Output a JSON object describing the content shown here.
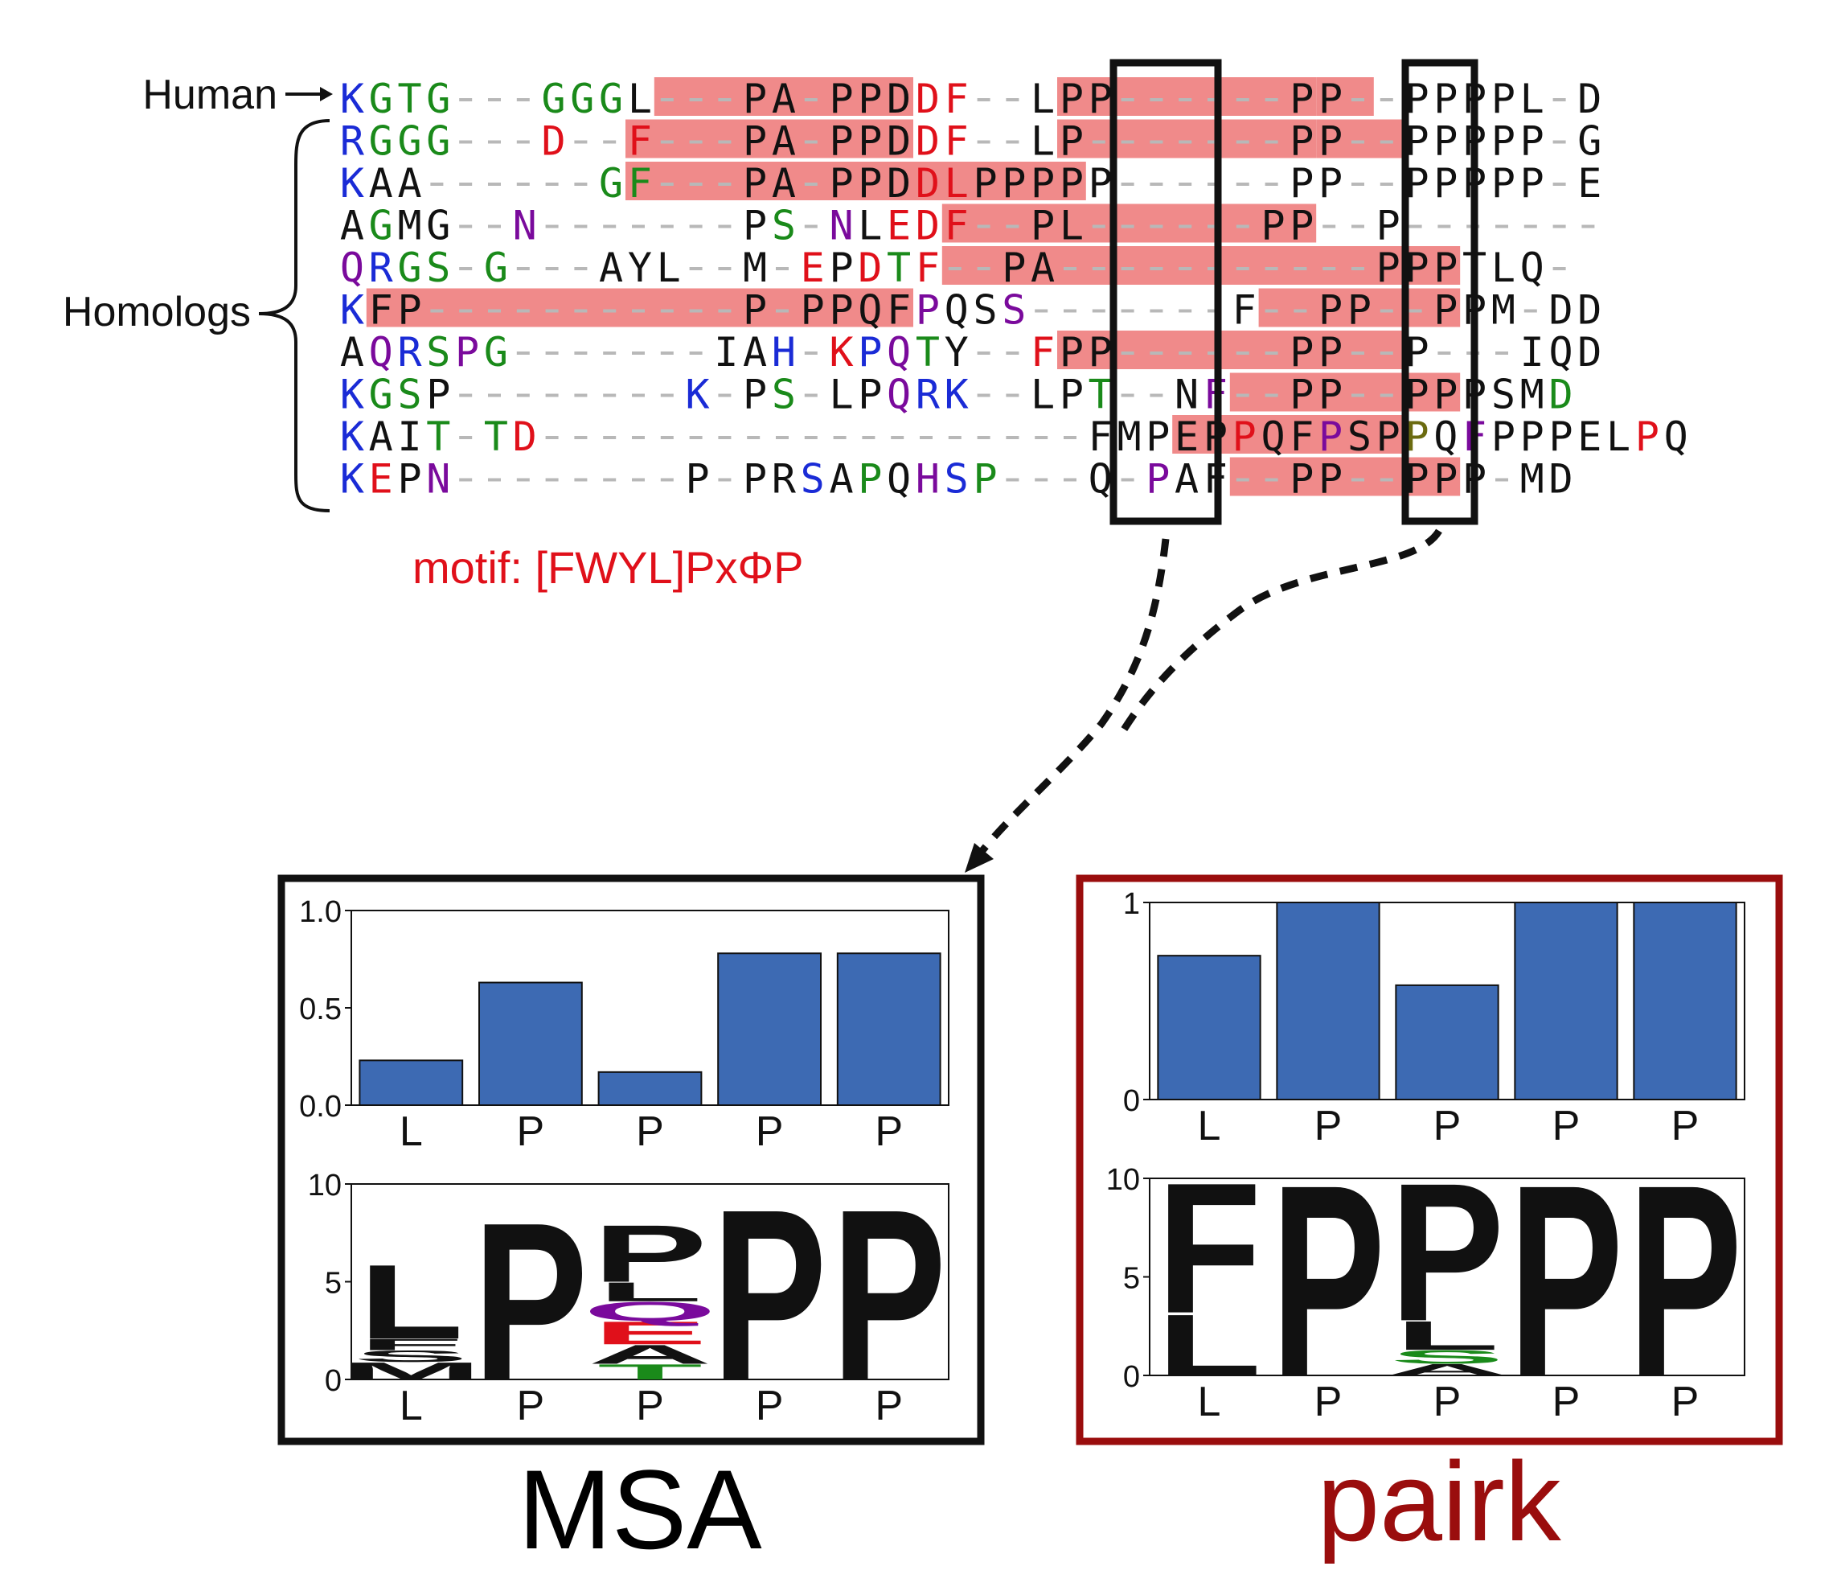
{
  "labels": {
    "human": "Human",
    "homologs": "Homologs",
    "motif": "motif: [FWYL]PxΦP",
    "msa_title": "MSA",
    "pairk_title": "pairk"
  },
  "colors": {
    "blue": "#1a2bd6",
    "green": "#1a8a1a",
    "red": "#e0101a",
    "purple": "#7a0a9c",
    "black": "#111111",
    "gap": "#b8b8b8",
    "highlight": "#f08a8a",
    "bar": "#3d6ab3",
    "pairk_frame": "#9a0d0d",
    "olive": "#6b6b10"
  },
  "alignment": {
    "columns": 40,
    "color_codes": "b=blue g=green r=red p=purple k=black o=olive",
    "rows": [
      {
        "seq": "KGTG---GGGL---PA-PPDDF--LPP------PP--PPPPL-D",
        "colors": "bggg---ggg----------rr----------------------r",
        "highlights": [
          [
            11,
            20
          ],
          [
            25,
            34
          ],
          [
            34,
            36
          ]
        ]
      },
      {
        "seq": "RGGG---D--F---PA-PPDDF--LP-------PP--PPPPP-G",
        "colors": "bggg---r--r---------rr-----------------------g",
        "highlights": [
          [
            10,
            20
          ],
          [
            25,
            34
          ],
          [
            34,
            37
          ]
        ]
      },
      {
        "seq": "KAA------GF---PA-PPDDLPPPPP------PP--PPPPP-E",
        "colors": "b--------gg---------rr----------------------r",
        "highlights": [
          [
            10,
            20
          ],
          [
            20,
            26
          ]
        ]
      },
      {
        "seq": "AGMG--N-------PS-NLEDF--PL------PP--P-------",
        "colors": "-g----p-------kg-p-rrr----------------------",
        "highlights": [
          [
            21,
            34
          ]
        ]
      },
      {
        "seq": "QRGS-G---AYL--M-EPDTF--PA-----------PPPTLQ-",
        "colors": "pbgg-g----------r-rgr---------------------gkp-",
        "highlights": [
          [
            21,
            39
          ]
        ]
      },
      {
        "seq": "KFP-----------P-PPQFPQSS-------F--PP--PPM-DD",
        "colors": "b-------------------p--pgg-------r----------rr",
        "highlights": [
          [
            1,
            20
          ],
          [
            32,
            39
          ]
        ]
      },
      {
        "seq": "AQRSPG-------IAH-KPQTY--FPP------PP--P---IQD",
        "colors": "-pbgpg-------k-b-rbpg---r-------------------r",
        "highlights": [
          [
            25,
            37
          ]
        ]
      },
      {
        "seq": "KGSP--------K-PS-LPQRK--LPT--NF--PP--PPPSMD",
        "colors": "bgg---------b--g--kpbb----g---p-----------gpr",
        "highlights": [
          [
            31,
            39
          ]
        ]
      },
      {
        "seq": "KAIT-TD-------------------FMPEPPQFPSPPQFPPPELPQ",
        "colors": "bk-g-gr------------------------r--p--o-p-----r--p",
        "highlights": [
          [
            29,
            37
          ]
        ]
      },
      {
        "seq": "KEPN--------P-PRSAPQHSP---Q-PAF--PP--PPP-MD",
        "colors": "brkp------------b-g-pbgg----p---------------r",
        "highlights": [
          [
            31,
            39
          ]
        ]
      }
    ]
  },
  "msa_panel": {
    "bar_chart": {
      "type": "bar",
      "categories": [
        "L",
        "P",
        "P",
        "P",
        "P"
      ],
      "values": [
        0.23,
        0.63,
        0.17,
        0.78,
        0.78
      ],
      "ylim": [
        0,
        1.0
      ],
      "yticks": [
        "0.0",
        "0.5",
        "1.0"
      ]
    },
    "logo": {
      "ylim": [
        0,
        10
      ],
      "yticks": [
        "0",
        "5",
        "10"
      ],
      "categories": [
        "L",
        "P",
        "P",
        "P",
        "P"
      ],
      "stacks": [
        [
          {
            "letter": "M",
            "height": 0.9,
            "color": "#111111"
          },
          {
            "letter": "S",
            "height": 0.6,
            "color": "#111111"
          },
          {
            "letter": "F",
            "height": 0.6,
            "color": "#111111"
          },
          {
            "letter": "L",
            "height": 3.9,
            "color": "#111111"
          }
        ],
        [
          {
            "letter": "P",
            "height": 8.3,
            "color": "#111111"
          }
        ],
        [
          {
            "letter": "T",
            "height": 0.8,
            "color": "#1a8a1a"
          },
          {
            "letter": "A",
            "height": 1.0,
            "color": "#111111"
          },
          {
            "letter": "E",
            "height": 1.2,
            "color": "#e0101a"
          },
          {
            "letter": "Q",
            "height": 1.0,
            "color": "#7a0a9c"
          },
          {
            "letter": "L",
            "height": 1.0,
            "color": "#111111"
          },
          {
            "letter": "P",
            "height": 3.0,
            "color": "#111111"
          }
        ],
        [
          {
            "letter": "P",
            "height": 9.0,
            "color": "#111111"
          }
        ],
        [
          {
            "letter": "P",
            "height": 9.0,
            "color": "#111111"
          }
        ]
      ]
    }
  },
  "pairk_panel": {
    "bar_chart": {
      "type": "bar",
      "categories": [
        "L",
        "P",
        "P",
        "P",
        "P"
      ],
      "values": [
        0.73,
        1.0,
        0.58,
        1.0,
        1.0
      ],
      "ylim": [
        0,
        1
      ],
      "yticks": [
        "0",
        "1"
      ]
    },
    "logo": {
      "ylim": [
        0,
        10
      ],
      "yticks": [
        "0",
        "5",
        "10"
      ],
      "categories": [
        "L",
        "P",
        "P",
        "P",
        "P"
      ],
      "stacks": [
        [
          {
            "letter": "L",
            "height": 3.2,
            "color": "#111111"
          },
          {
            "letter": "F",
            "height": 6.8,
            "color": "#111111"
          }
        ],
        [
          {
            "letter": "P",
            "height": 10,
            "color": "#111111"
          }
        ],
        [
          {
            "letter": "A",
            "height": 0.6,
            "color": "#111111"
          },
          {
            "letter": "S",
            "height": 0.7,
            "color": "#1a8a1a"
          },
          {
            "letter": "L",
            "height": 1.5,
            "color": "#111111"
          },
          {
            "letter": "P",
            "height": 7.2,
            "color": "#111111"
          }
        ],
        [
          {
            "letter": "P",
            "height": 10,
            "color": "#111111"
          }
        ],
        [
          {
            "letter": "P",
            "height": 10,
            "color": "#111111"
          }
        ]
      ]
    }
  }
}
